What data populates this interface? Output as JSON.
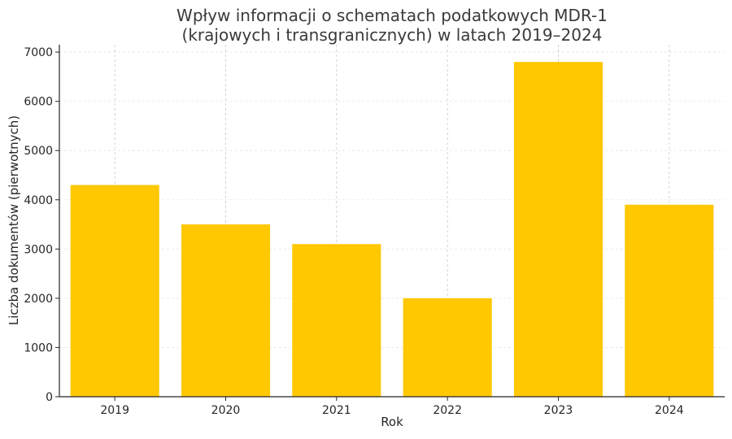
{
  "chart_data": {
    "type": "bar",
    "title_lines": [
      "Wpływ informacji o schematach podatkowych MDR-1",
      "(krajowych i transgranicznych) w latach 2019–2024"
    ],
    "xlabel": "Rok",
    "ylabel": "Liczba dokumentów (pierwotnych)",
    "categories": [
      "2019",
      "2020",
      "2021",
      "2022",
      "2023",
      "2024"
    ],
    "values": [
      4300,
      3500,
      3100,
      2000,
      6800,
      3900
    ],
    "ylim": [
      0,
      7150
    ],
    "yticks": [
      0,
      1000,
      2000,
      3000,
      4000,
      5000,
      6000,
      7000
    ],
    "grid": true,
    "bar_color": "#FFC800"
  }
}
